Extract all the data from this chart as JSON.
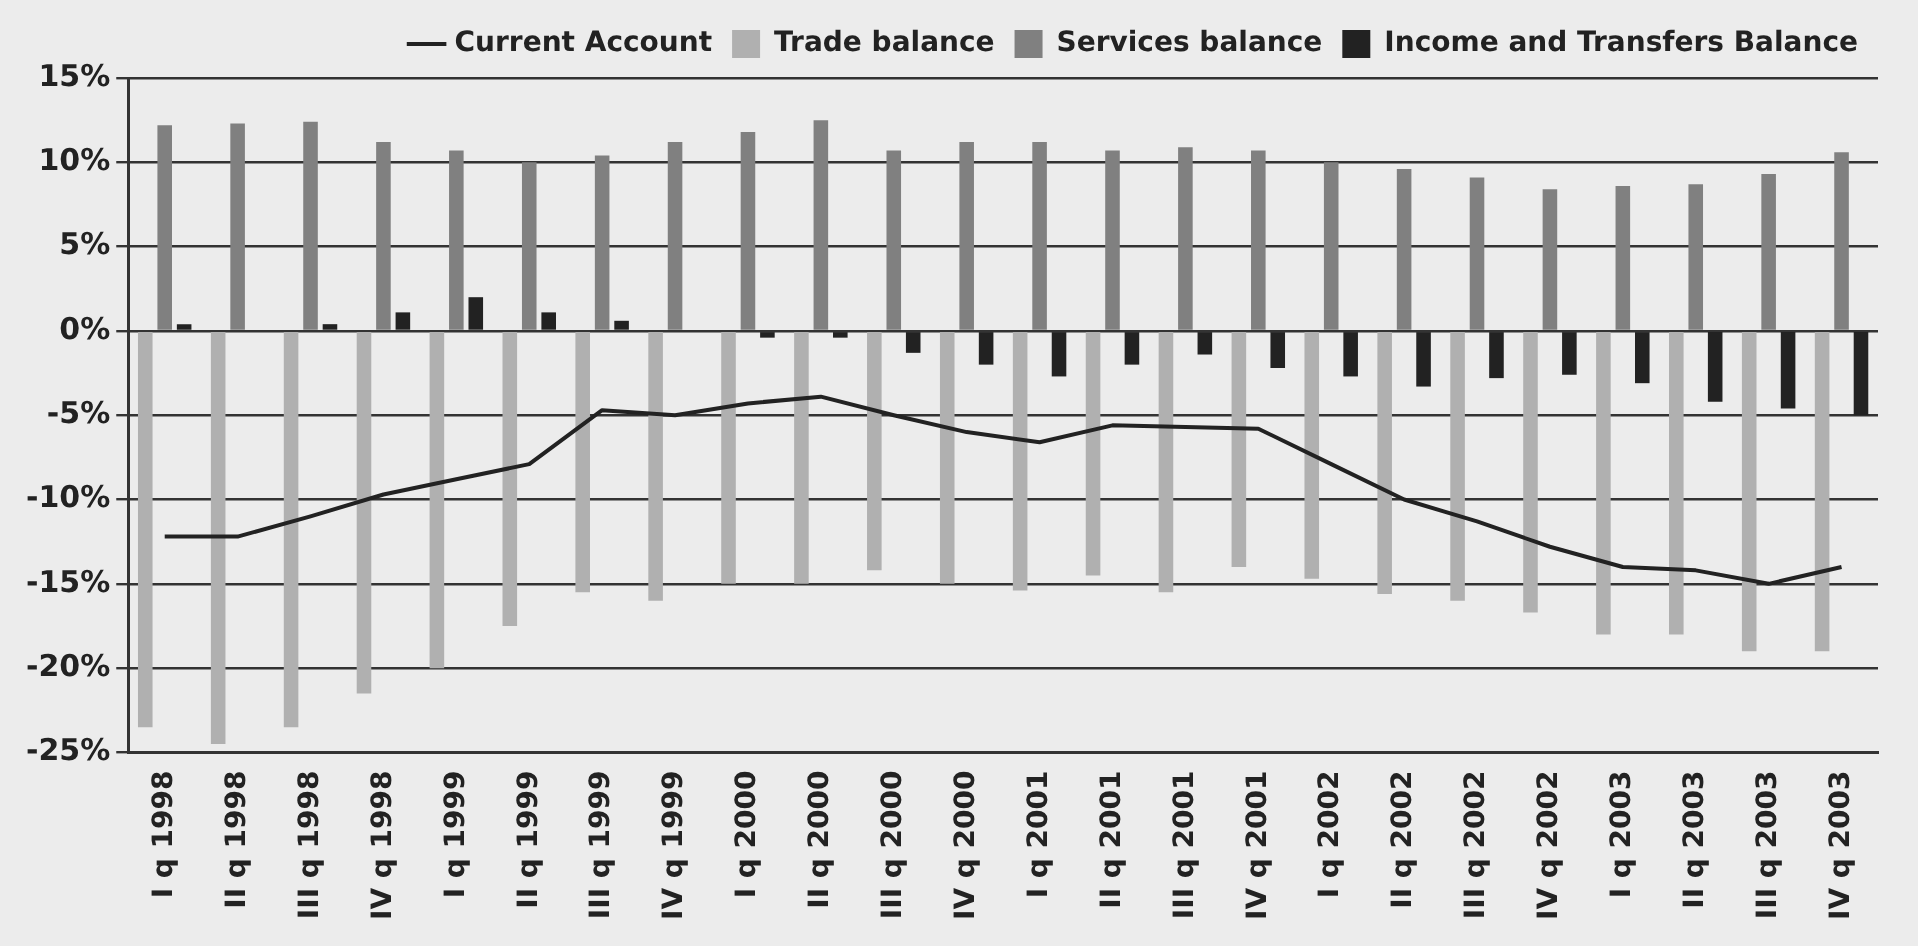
{
  "chart_data": {
    "type": "bar",
    "categories": [
      "I q 1998",
      "II q 1998",
      "III q 1998",
      "IV q 1998",
      "I q 1999",
      "II q 1999",
      "III q 1999",
      "IV q 1999",
      "I q 2000",
      "II q 2000",
      "III q 2000",
      "IV q 2000",
      "I q 2001",
      "II q 2001",
      "III q 2001",
      "IV q 2001",
      "I q 2002",
      "II q 2002",
      "III q 2002",
      "IV q 2002",
      "I q 2003",
      "II q 2003",
      "III q 2003",
      "IV q 2003"
    ],
    "series": [
      {
        "name": "Trade balance",
        "color": "#b0b0b0",
        "values": [
          -23.5,
          -24.5,
          -23.5,
          -21.5,
          -20,
          -17.5,
          -15.5,
          -16,
          -15,
          -15,
          -14.2,
          -15,
          -15.4,
          -14.5,
          -15.5,
          -14,
          -14.7,
          -15.6,
          -16,
          -16.7,
          -18,
          -18,
          -19,
          -19
        ]
      },
      {
        "name": "Services balance",
        "color": "#808080",
        "values": [
          12.2,
          12.3,
          12.4,
          11.2,
          10.7,
          10,
          10.4,
          11.2,
          11.8,
          12.5,
          10.7,
          11.2,
          11.2,
          10.7,
          10.9,
          10.7,
          10,
          9.6,
          9.1,
          8.4,
          8.6,
          8.7,
          9.3,
          10.6
        ]
      },
      {
        "name": "Income and Transfers Balance",
        "color": "#222222",
        "values": [
          0.4,
          0,
          0.4,
          1.1,
          2,
          1.1,
          0.6,
          0,
          -0.4,
          -0.4,
          -1.3,
          -2,
          -2.7,
          -2,
          -1.4,
          -2.2,
          -2.7,
          -3.3,
          -2.8,
          -2.6,
          -3.1,
          -4.2,
          -4.6,
          -5
        ]
      },
      {
        "name": "Current Account",
        "type": "line",
        "color": "#222222",
        "values": [
          -12.2,
          -12.2,
          -11,
          -9.7,
          -8.8,
          -7.9,
          -4.7,
          -5,
          -4.3,
          -3.9,
          -5,
          -6,
          -6.6,
          -5.6,
          -5.7,
          -5.8,
          -7.9,
          -10,
          -11.3,
          -12.8,
          -14,
          -14.2,
          -15,
          -14
        ]
      }
    ],
    "ylim": [
      -25,
      15
    ],
    "yticks": [
      {
        "value": -25,
        "label": "-25%"
      },
      {
        "value": -20,
        "label": "-20%"
      },
      {
        "value": -15,
        "label": "-15%"
      },
      {
        "value": -10,
        "label": "-10%"
      },
      {
        "value": -5,
        "label": "-5%"
      },
      {
        "value": 0,
        "label": "0%"
      },
      {
        "value": 5,
        "label": "5%"
      },
      {
        "value": 10,
        "label": "10%"
      },
      {
        "value": 15,
        "label": "15%"
      }
    ],
    "grid": "y",
    "legend": "top right",
    "marker": "none",
    "line_style": "solid"
  }
}
